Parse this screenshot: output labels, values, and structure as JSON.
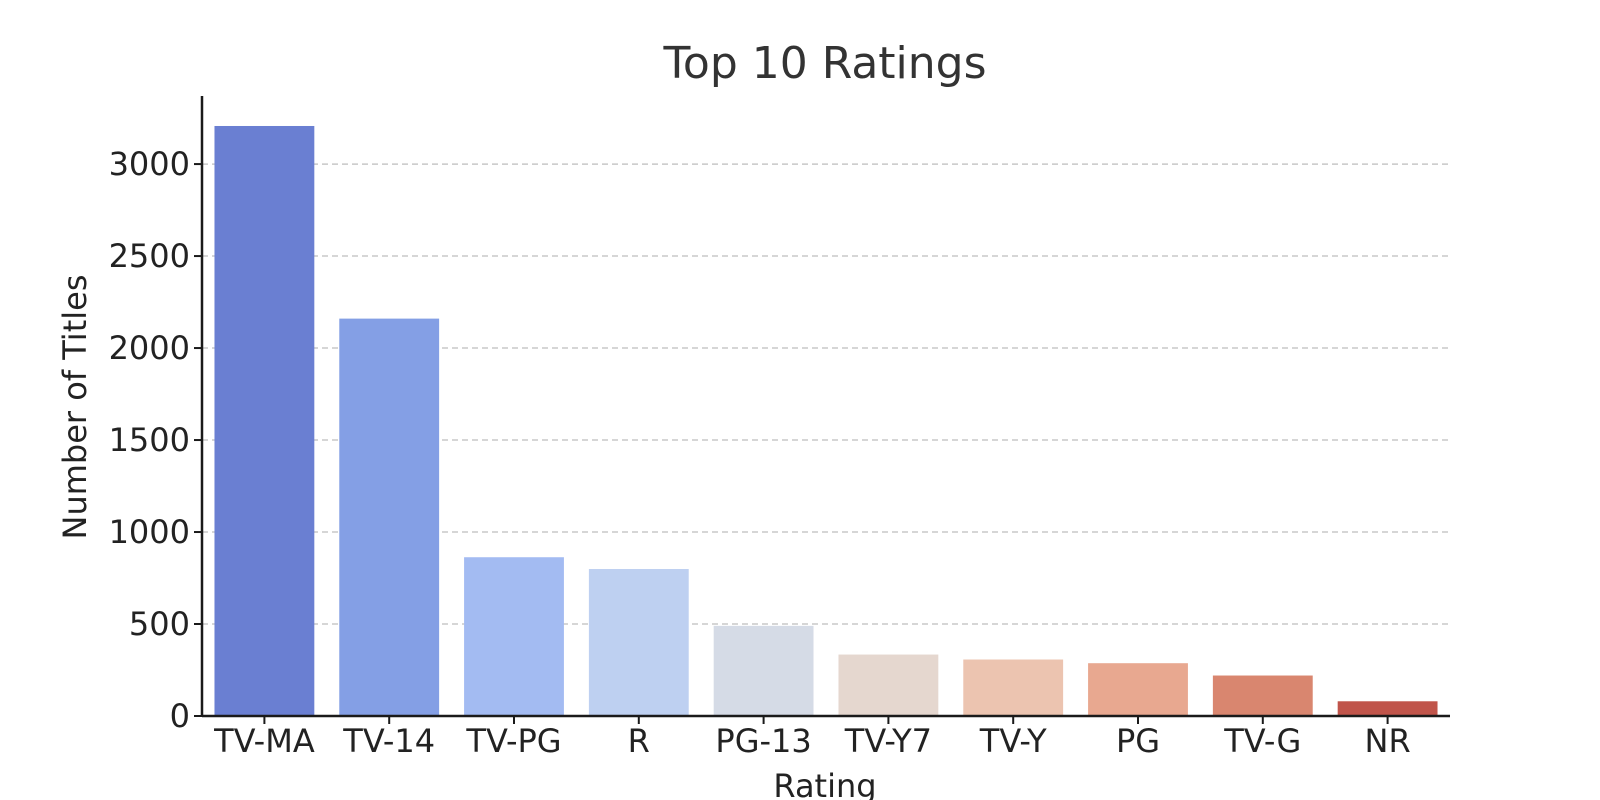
{
  "chart_data": {
    "type": "bar",
    "title": "Top 10 Ratings",
    "xlabel": "Rating",
    "ylabel": "Number of Titles",
    "categories": [
      "TV-MA",
      "TV-14",
      "TV-PG",
      "R",
      "PG-13",
      "TV-Y7",
      "TV-Y",
      "PG",
      "TV-G",
      "NR"
    ],
    "values": [
      3207,
      2160,
      863,
      799,
      490,
      334,
      307,
      287,
      220,
      80
    ],
    "colors": [
      "#6a7fd2",
      "#849fe5",
      "#a3bbf2",
      "#bed0f1",
      "#d5dbe6",
      "#e5d7cf",
      "#ecc4b0",
      "#e8a890",
      "#d9866f",
      "#c0544a"
    ],
    "ylim": [
      0,
      3370
    ],
    "yticks": [
      0,
      500,
      1000,
      1500,
      2000,
      2500,
      3000
    ],
    "grid": "y",
    "legend": "none"
  }
}
